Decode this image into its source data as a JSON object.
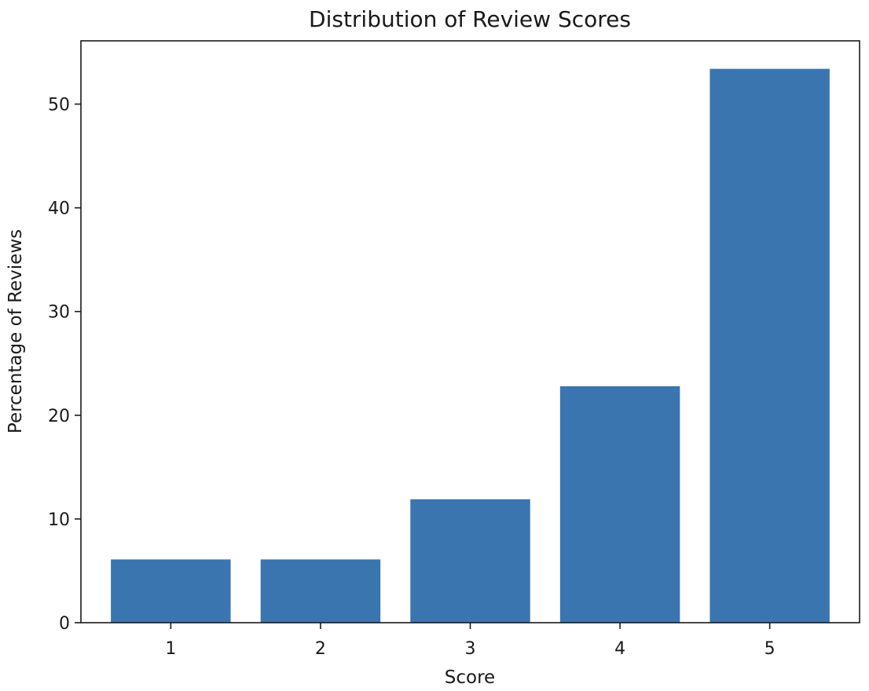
{
  "chart_data": {
    "type": "bar",
    "title": "Distribution of Review Scores",
    "xlabel": "Score",
    "ylabel": "Percentage of Reviews",
    "categories": [
      "1",
      "2",
      "3",
      "4",
      "5"
    ],
    "values": [
      6.1,
      6.1,
      11.9,
      22.8,
      53.4
    ],
    "ylim": [
      0,
      56.1
    ],
    "yticks": [
      0,
      10,
      20,
      30,
      40,
      50
    ],
    "ytick_labels": [
      "0",
      "10",
      "20",
      "30",
      "40",
      "50"
    ],
    "grid": false,
    "bar_color": "#3b75af"
  }
}
